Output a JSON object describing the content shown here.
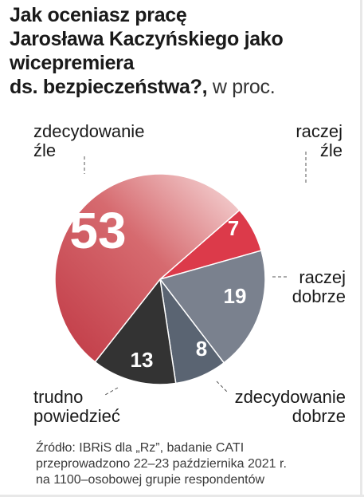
{
  "title": {
    "lines": [
      "Jak oceniasz pracę",
      "Jarosława  Kaczyńskiego jako",
      "wicepremiera",
      "ds. bezpieczeństwa?,"
    ],
    "unit": "w proc."
  },
  "chart_data": {
    "type": "pie",
    "title": "Jak oceniasz pracę Jarosława Kaczyńskiego jako wicepremiera ds. bezpieczeństwa?",
    "unit": "w proc.",
    "slices": [
      {
        "label": "raczej źle",
        "label_lines": [
          "raczej",
          "źle"
        ],
        "value": 7,
        "color": "#dc3a4a"
      },
      {
        "label": "raczej dobrze",
        "label_lines": [
          "raczej",
          "dobrze"
        ],
        "value": 19,
        "color": "#7a818e"
      },
      {
        "label": "zdecydowanie dobrze",
        "label_lines": [
          "zdecydowanie",
          "dobrze"
        ],
        "value": 8,
        "color": "#5a6472"
      },
      {
        "label": "trudno powiedzieć",
        "label_lines": [
          "trudno",
          "powiedzieć"
        ],
        "value": 13,
        "color": "#333333"
      },
      {
        "label": "zdecydowanie źle",
        "label_lines": [
          "zdecydowanie",
          "źle"
        ],
        "value": 53,
        "color": "#c03844"
      }
    ]
  },
  "source": {
    "lines": [
      "Źródło: IBRiS dla „Rz”, badanie CATI",
      "przeprowadzono 22–23 października 2021 r.",
      "na 1100–osobowej grupie respondentów"
    ]
  }
}
